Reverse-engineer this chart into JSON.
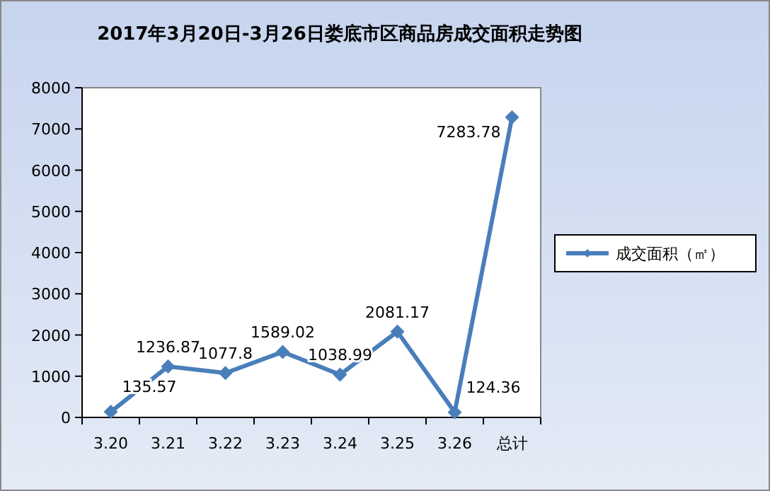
{
  "chart_data": {
    "type": "line",
    "title": "2017年3月20日-3月26日娄底市区商品房成交面积走势图",
    "categories": [
      "3.20",
      "3.21",
      "3.22",
      "3.23",
      "3.24",
      "3.25",
      "3.26",
      "总计"
    ],
    "series": [
      {
        "name": "成交面积（㎡）",
        "color": "#4a7ebb",
        "values": [
          135.57,
          1236.87,
          1077.8,
          1589.02,
          1038.99,
          2081.17,
          124.36,
          7283.78
        ]
      }
    ],
    "ylim": [
      0,
      8000
    ],
    "yticks": [
      0,
      1000,
      2000,
      3000,
      4000,
      5000,
      6000,
      7000,
      8000
    ],
    "grid": false,
    "legend": "right",
    "marker": "diamond",
    "line_style": "solid",
    "data_labels": true
  }
}
